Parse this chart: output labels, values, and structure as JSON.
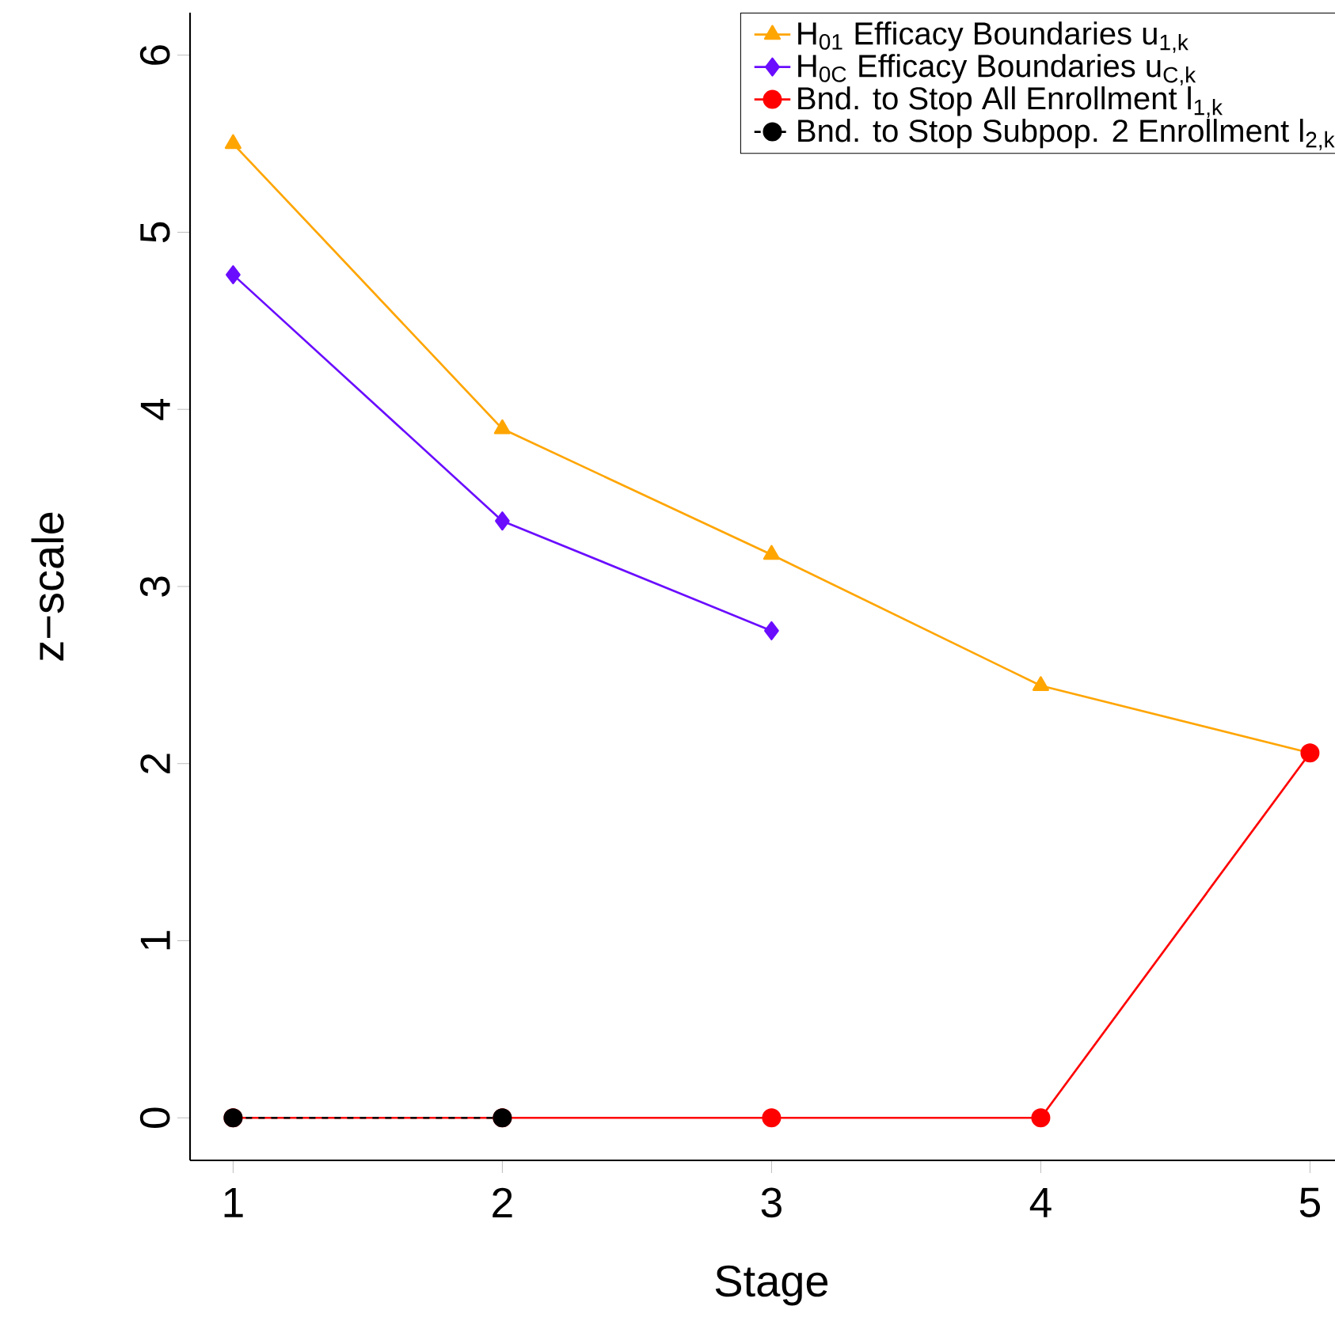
{
  "chart_data": {
    "type": "line",
    "xlabel": "Stage",
    "ylabel": "z−scale",
    "x": [
      1,
      2,
      3,
      4,
      5
    ],
    "series": [
      {
        "name": "H$_{01}$ Efficacy Boundaries u$_{1,k}$",
        "color": "#ffa500",
        "values": [
          5.5,
          3.89,
          3.18,
          2.44,
          2.06
        ],
        "marker": "triangle",
        "line_style": "solid"
      },
      {
        "name": "H$_{0C}$ Efficacy Boundaries u$_{C,k}$",
        "color": "#6a0dff",
        "values": [
          4.76,
          3.37,
          2.75,
          null,
          null
        ],
        "marker": "diamond",
        "line_style": "solid"
      },
      {
        "name": "Bnd. to Stop All Enrollment l$_{1,k}$",
        "color": "#ff0000",
        "values": [
          0,
          0,
          0,
          0,
          2.06
        ],
        "marker": "circle",
        "line_style": "solid"
      },
      {
        "name": "Bnd. to Stop Subpop. 2 Enrollment l$_{2,k}$",
        "color": "#000000",
        "values": [
          0,
          0,
          null,
          null,
          null
        ],
        "marker": "circle",
        "line_style": "dashed"
      }
    ],
    "xlim": [
      0.84,
      5.16
    ],
    "ylim": [
      -0.24,
      6.24
    ],
    "xticks": [
      1,
      2,
      3,
      4,
      5
    ],
    "yticks": [
      0,
      1,
      2,
      3,
      4,
      5,
      6
    ],
    "grid": false,
    "legend": "top right"
  }
}
